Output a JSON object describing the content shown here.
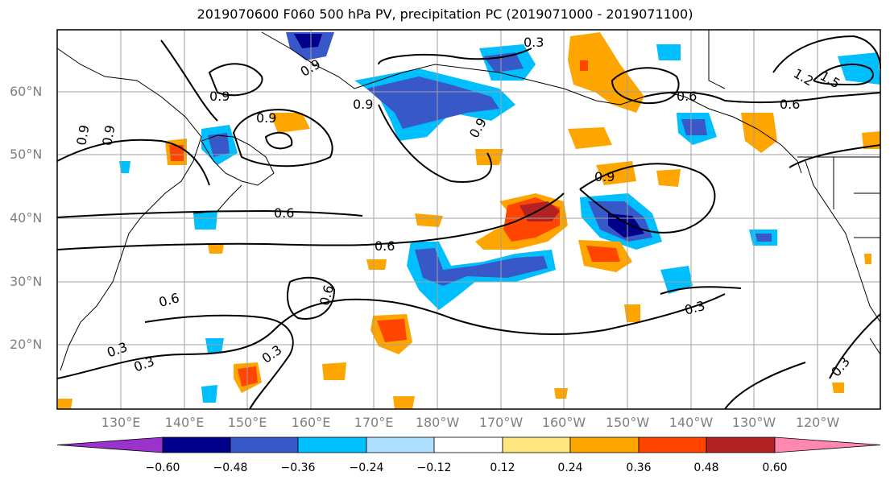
{
  "title": "2019070600 F060 500 hPa PV, precipitation PC (2019071000 - 2019071100)",
  "lat_labels": [
    "60°N",
    "50°N",
    "40°N",
    "30°N",
    "20°N"
  ],
  "lon_labels": [
    "130°E",
    "140°E",
    "150°E",
    "160°E",
    "170°E",
    "180°W",
    "170°W",
    "160°W",
    "150°W",
    "140°W",
    "130°W",
    "120°W"
  ],
  "contour_labels": [
    "0.3",
    "0.9",
    "0.9",
    "0.9",
    "0.9",
    "0.9",
    "0.9",
    "0.9",
    "0.6",
    "0.9",
    "1.2",
    "1.5",
    "0.6",
    "0.6",
    "0.6",
    "0.6",
    "0.3",
    "0.3",
    "0.3",
    "0.3",
    "0.3",
    "0.6"
  ],
  "colorbar": {
    "ticks": [
      "−0.60",
      "−0.48",
      "−0.36",
      "−0.24",
      "−0.12",
      "0.12",
      "0.24",
      "0.36",
      "0.48",
      "0.60"
    ],
    "colors": [
      "#9933cc",
      "#00008b",
      "#3858c8",
      "#00bfff",
      "#b0e0ff",
      "#ffffff",
      "#ffe680",
      "#ffa500",
      "#ff4500",
      "#b22222",
      "#ff88b0"
    ]
  }
}
